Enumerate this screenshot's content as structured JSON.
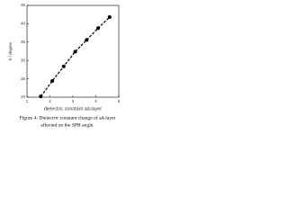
{
  "chart_data": {
    "type": "scatter",
    "xlabel": "dielectric constant ad-layer",
    "ylabel": "θ / degree",
    "caption": [
      "Figure 4: Dielectric constant change of ad-layer",
      "affected on the SPR angle."
    ],
    "x": [
      1.6,
      2.1,
      2.6,
      3.1,
      3.6,
      4.1,
      4.6
    ],
    "series": [
      {
        "color": "#000000",
        "values": [
          20.2,
          24.4,
          28.4,
          32.4,
          35.6,
          38.8,
          41.8
        ]
      }
    ],
    "line_style": "dashed",
    "xlim": [
      1,
      5
    ],
    "xticks": [
      1,
      2,
      3,
      4,
      5
    ],
    "ylim": [
      20,
      45
    ],
    "yticks": [
      20,
      25,
      30,
      35,
      40,
      45
    ]
  }
}
